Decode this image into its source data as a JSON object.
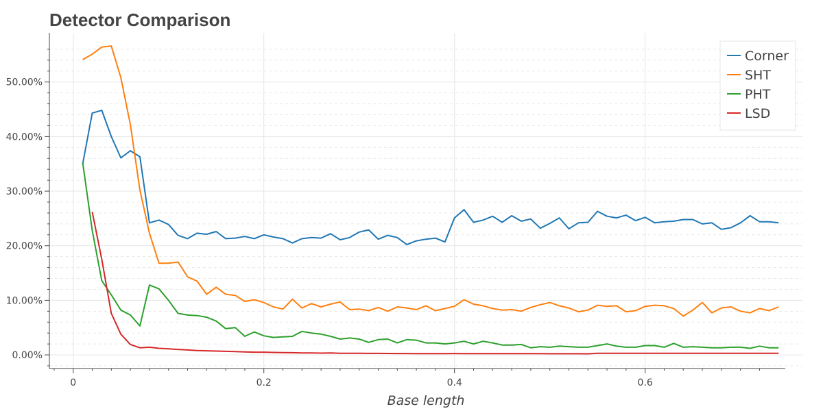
{
  "chart_data": {
    "type": "line",
    "title": "Detector Comparison",
    "xlabel": "Base length",
    "ylabel": "",
    "xlim": [
      -0.025,
      0.765
    ],
    "ylim": [
      -0.025,
      0.59
    ],
    "x_ticks": [
      0,
      0.2,
      0.4,
      0.6
    ],
    "x_tick_labels": [
      "0",
      "0.2",
      "0.4",
      "0.6"
    ],
    "y_ticks": [
      0,
      0.1,
      0.2,
      0.3,
      0.4,
      0.5
    ],
    "y_tick_labels": [
      "0.00%",
      "10.00%",
      "20.00%",
      "30.00%",
      "40.00%",
      "50.00%"
    ],
    "grid": true,
    "legend_position": "top-right",
    "series": [
      {
        "name": "Corner",
        "color": "#1f77b4",
        "x": [
          0.01,
          0.02,
          0.03,
          0.04,
          0.05,
          0.06,
          0.07,
          0.08,
          0.09,
          0.1,
          0.11,
          0.12,
          0.13,
          0.14,
          0.15,
          0.16,
          0.17,
          0.18,
          0.19,
          0.2,
          0.21,
          0.22,
          0.23,
          0.24,
          0.25,
          0.26,
          0.27,
          0.28,
          0.29,
          0.3,
          0.31,
          0.32,
          0.33,
          0.34,
          0.35,
          0.36,
          0.37,
          0.38,
          0.39,
          0.4,
          0.41,
          0.42,
          0.43,
          0.44,
          0.45,
          0.46,
          0.47,
          0.48,
          0.49,
          0.5,
          0.51,
          0.52,
          0.53,
          0.54,
          0.55,
          0.56,
          0.57,
          0.58,
          0.59,
          0.6,
          0.61,
          0.62,
          0.63,
          0.64,
          0.65,
          0.66,
          0.67,
          0.68,
          0.69,
          0.7,
          0.71,
          0.72,
          0.73,
          0.74
        ],
        "values": [
          0.35,
          0.443,
          0.448,
          0.4,
          0.361,
          0.374,
          0.363,
          0.242,
          0.247,
          0.239,
          0.219,
          0.213,
          0.223,
          0.221,
          0.226,
          0.213,
          0.214,
          0.217,
          0.213,
          0.22,
          0.216,
          0.213,
          0.205,
          0.213,
          0.215,
          0.214,
          0.222,
          0.211,
          0.215,
          0.225,
          0.229,
          0.212,
          0.219,
          0.215,
          0.202,
          0.209,
          0.212,
          0.214,
          0.207,
          0.251,
          0.266,
          0.243,
          0.247,
          0.254,
          0.243,
          0.255,
          0.245,
          0.249,
          0.232,
          0.241,
          0.251,
          0.231,
          0.242,
          0.243,
          0.263,
          0.254,
          0.251,
          0.256,
          0.246,
          0.252,
          0.242,
          0.244,
          0.245,
          0.248,
          0.248,
          0.24,
          0.242,
          0.23,
          0.233,
          0.242,
          0.255,
          0.244,
          0.244,
          0.242
        ]
      },
      {
        "name": "SHT",
        "color": "#ff7f0e",
        "x": [
          0.01,
          0.02,
          0.03,
          0.04,
          0.05,
          0.06,
          0.07,
          0.08,
          0.09,
          0.1,
          0.11,
          0.12,
          0.13,
          0.14,
          0.15,
          0.16,
          0.17,
          0.18,
          0.19,
          0.2,
          0.21,
          0.22,
          0.23,
          0.24,
          0.25,
          0.26,
          0.27,
          0.28,
          0.29,
          0.3,
          0.31,
          0.32,
          0.33,
          0.34,
          0.35,
          0.36,
          0.37,
          0.38,
          0.39,
          0.4,
          0.41,
          0.42,
          0.43,
          0.44,
          0.45,
          0.46,
          0.47,
          0.48,
          0.49,
          0.5,
          0.51,
          0.52,
          0.53,
          0.54,
          0.55,
          0.56,
          0.57,
          0.58,
          0.59,
          0.6,
          0.61,
          0.62,
          0.63,
          0.64,
          0.65,
          0.66,
          0.67,
          0.68,
          0.69,
          0.7,
          0.71,
          0.72,
          0.73,
          0.74
        ],
        "values": [
          0.541,
          0.551,
          0.564,
          0.566,
          0.508,
          0.422,
          0.302,
          0.223,
          0.168,
          0.168,
          0.17,
          0.143,
          0.135,
          0.111,
          0.124,
          0.111,
          0.109,
          0.098,
          0.101,
          0.096,
          0.088,
          0.084,
          0.102,
          0.086,
          0.094,
          0.088,
          0.093,
          0.097,
          0.083,
          0.084,
          0.081,
          0.087,
          0.08,
          0.088,
          0.086,
          0.083,
          0.09,
          0.081,
          0.085,
          0.089,
          0.101,
          0.093,
          0.09,
          0.085,
          0.082,
          0.083,
          0.08,
          0.087,
          0.092,
          0.096,
          0.09,
          0.086,
          0.079,
          0.082,
          0.091,
          0.089,
          0.09,
          0.079,
          0.081,
          0.089,
          0.091,
          0.09,
          0.085,
          0.071,
          0.082,
          0.096,
          0.077,
          0.086,
          0.088,
          0.08,
          0.077,
          0.085,
          0.081,
          0.088
        ]
      },
      {
        "name": "PHT",
        "color": "#2ca02c",
        "x": [
          0.01,
          0.02,
          0.03,
          0.04,
          0.05,
          0.06,
          0.07,
          0.08,
          0.09,
          0.1,
          0.11,
          0.12,
          0.13,
          0.14,
          0.15,
          0.16,
          0.17,
          0.18,
          0.19,
          0.2,
          0.21,
          0.22,
          0.23,
          0.24,
          0.25,
          0.26,
          0.27,
          0.28,
          0.29,
          0.3,
          0.31,
          0.32,
          0.33,
          0.34,
          0.35,
          0.36,
          0.37,
          0.38,
          0.39,
          0.4,
          0.41,
          0.42,
          0.43,
          0.44,
          0.45,
          0.46,
          0.47,
          0.48,
          0.49,
          0.5,
          0.51,
          0.52,
          0.53,
          0.54,
          0.55,
          0.56,
          0.57,
          0.58,
          0.59,
          0.6,
          0.61,
          0.62,
          0.63,
          0.64,
          0.65,
          0.66,
          0.67,
          0.68,
          0.69,
          0.7,
          0.71,
          0.72,
          0.73,
          0.74
        ],
        "values": [
          0.352,
          0.228,
          0.136,
          0.11,
          0.082,
          0.073,
          0.053,
          0.128,
          0.121,
          0.1,
          0.076,
          0.073,
          0.072,
          0.069,
          0.062,
          0.048,
          0.05,
          0.034,
          0.042,
          0.035,
          0.032,
          0.033,
          0.034,
          0.043,
          0.04,
          0.038,
          0.034,
          0.029,
          0.031,
          0.029,
          0.023,
          0.028,
          0.029,
          0.022,
          0.028,
          0.027,
          0.022,
          0.022,
          0.02,
          0.022,
          0.025,
          0.02,
          0.025,
          0.022,
          0.018,
          0.018,
          0.019,
          0.013,
          0.015,
          0.014,
          0.016,
          0.015,
          0.014,
          0.014,
          0.017,
          0.02,
          0.016,
          0.014,
          0.014,
          0.017,
          0.017,
          0.014,
          0.021,
          0.014,
          0.015,
          0.014,
          0.013,
          0.013,
          0.014,
          0.014,
          0.012,
          0.016,
          0.013,
          0.013
        ]
      },
      {
        "name": "LSD",
        "color": "#d62728",
        "x": [
          0.02,
          0.03,
          0.04,
          0.05,
          0.06,
          0.07,
          0.08,
          0.09,
          0.1,
          0.11,
          0.12,
          0.13,
          0.14,
          0.15,
          0.16,
          0.17,
          0.18,
          0.19,
          0.2,
          0.21,
          0.22,
          0.23,
          0.24,
          0.25,
          0.26,
          0.27,
          0.28,
          0.29,
          0.3,
          0.31,
          0.32,
          0.33,
          0.34,
          0.35,
          0.36,
          0.37,
          0.38,
          0.39,
          0.4,
          0.41,
          0.42,
          0.43,
          0.44,
          0.45,
          0.46,
          0.47,
          0.48,
          0.49,
          0.5,
          0.51,
          0.52,
          0.53,
          0.54,
          0.55,
          0.56,
          0.57,
          0.58,
          0.59,
          0.6,
          0.61,
          0.62,
          0.63,
          0.64,
          0.65,
          0.66,
          0.67,
          0.68,
          0.69,
          0.7,
          0.71,
          0.72,
          0.73,
          0.74
        ],
        "values": [
          0.262,
          0.175,
          0.076,
          0.038,
          0.019,
          0.013,
          0.014,
          0.012,
          0.011,
          0.01,
          0.009,
          0.008,
          0.0075,
          0.007,
          0.0065,
          0.006,
          0.0055,
          0.005,
          0.005,
          0.0045,
          0.0042,
          0.004,
          0.0035,
          0.0035,
          0.0033,
          0.0035,
          0.003,
          0.003,
          0.003,
          0.0028,
          0.0027,
          0.0026,
          0.0025,
          0.0025,
          0.0024,
          0.0024,
          0.0024,
          0.0023,
          0.0025,
          0.0024,
          0.0024,
          0.0023,
          0.0023,
          0.0023,
          0.0022,
          0.0022,
          0.0022,
          0.0022,
          0.0021,
          0.0021,
          0.0021,
          0.0021,
          0.002,
          0.003,
          0.003,
          0.003,
          0.003,
          0.003,
          0.003,
          0.003,
          0.003,
          0.003,
          0.003,
          0.003,
          0.003,
          0.003,
          0.003,
          0.003,
          0.003,
          0.003,
          0.003,
          0.003,
          0.003
        ]
      }
    ]
  }
}
